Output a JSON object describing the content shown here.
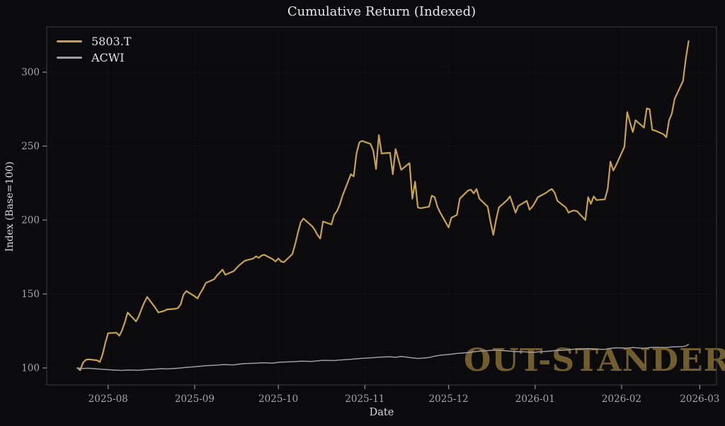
{
  "figure": {
    "title": "Cumulative Return (Indexed)",
    "watermark": "OUT-STANDER"
  },
  "chart_data": {
    "type": "line",
    "title": "Cumulative Return (Indexed)",
    "xlabel": "Date",
    "ylabel": "Index (Base=100)",
    "grid": "dotted",
    "background_color": "#0b0b0d",
    "grid_color": "#2e2d29",
    "spine_color": "#3d3d3d",
    "tick_label_color": "#a6a6a6",
    "x_domain": [
      "2025-07-10",
      "2026-03-07"
    ],
    "y_domain": [
      88.5,
      330.6
    ],
    "y_ticks": [
      100,
      150,
      200,
      250,
      300
    ],
    "x_ticks": [
      {
        "label": "2025-08",
        "date": "2025-08-01"
      },
      {
        "label": "2025-09",
        "date": "2025-09-01"
      },
      {
        "label": "2025-10",
        "date": "2025-10-01"
      },
      {
        "label": "2025-11",
        "date": "2025-11-01"
      },
      {
        "label": "2025-12",
        "date": "2025-12-01"
      },
      {
        "label": "2026-01",
        "date": "2026-01-01"
      },
      {
        "label": "2026-02",
        "date": "2026-02-01"
      },
      {
        "label": "2026-03",
        "date": "2026-03-01"
      }
    ],
    "legend": {
      "position": "upper-left"
    },
    "series": [
      {
        "name": "5803.T",
        "color": "#C9A24C",
        "line_width": 2.2,
        "points": [
          [
            "2025-07-21",
            100
          ],
          [
            "2025-07-22",
            98.5
          ],
          [
            "2025-07-23",
            103.5
          ],
          [
            "2025-07-24",
            105.5
          ],
          [
            "2025-07-25",
            105.8
          ],
          [
            "2025-07-28",
            105.2
          ],
          [
            "2025-07-29",
            104
          ],
          [
            "2025-07-30",
            109
          ],
          [
            "2025-07-31",
            117
          ],
          [
            "2025-08-01",
            123.5
          ],
          [
            "2025-08-04",
            123.8
          ],
          [
            "2025-08-05",
            121.8
          ],
          [
            "2025-08-06",
            125.5
          ],
          [
            "2025-08-07",
            131
          ],
          [
            "2025-08-08",
            137.5
          ],
          [
            "2025-08-11",
            131.5
          ],
          [
            "2025-08-12",
            135
          ],
          [
            "2025-08-13",
            140
          ],
          [
            "2025-08-14",
            144.5
          ],
          [
            "2025-08-15",
            148
          ],
          [
            "2025-08-18",
            140.5
          ],
          [
            "2025-08-19",
            137.5
          ],
          [
            "2025-08-20",
            138
          ],
          [
            "2025-08-21",
            138.5
          ],
          [
            "2025-08-22",
            139.5
          ],
          [
            "2025-08-25",
            140
          ],
          [
            "2025-08-26",
            140.5
          ],
          [
            "2025-08-27",
            143
          ],
          [
            "2025-08-28",
            149.5
          ],
          [
            "2025-08-29",
            152
          ],
          [
            "2025-09-01",
            148.5
          ],
          [
            "2025-09-02",
            147
          ],
          [
            "2025-09-03",
            150.5
          ],
          [
            "2025-09-04",
            153.5
          ],
          [
            "2025-09-05",
            157.5
          ],
          [
            "2025-09-08",
            160
          ],
          [
            "2025-09-09",
            162.5
          ],
          [
            "2025-09-10",
            164.5
          ],
          [
            "2025-09-11",
            166.5
          ],
          [
            "2025-09-12",
            163
          ],
          [
            "2025-09-15",
            165.5
          ],
          [
            "2025-09-16",
            167.5
          ],
          [
            "2025-09-17",
            169.5
          ],
          [
            "2025-09-18",
            171
          ],
          [
            "2025-09-19",
            172.5
          ],
          [
            "2025-09-22",
            174
          ],
          [
            "2025-09-23",
            175.5
          ],
          [
            "2025-09-24",
            174.5
          ],
          [
            "2025-09-25",
            176
          ],
          [
            "2025-09-26",
            176.5
          ],
          [
            "2025-09-29",
            173.5
          ],
          [
            "2025-09-30",
            172
          ],
          [
            "2025-10-01",
            174
          ],
          [
            "2025-10-02",
            172
          ],
          [
            "2025-10-03",
            171.5
          ],
          [
            "2025-10-06",
            177
          ],
          [
            "2025-10-07",
            183.5
          ],
          [
            "2025-10-08",
            191.5
          ],
          [
            "2025-10-09",
            198.5
          ],
          [
            "2025-10-10",
            201
          ],
          [
            "2025-10-13",
            196
          ],
          [
            "2025-10-14",
            193.5
          ],
          [
            "2025-10-15",
            190
          ],
          [
            "2025-10-16",
            187.5
          ],
          [
            "2025-10-17",
            199
          ],
          [
            "2025-10-20",
            197
          ],
          [
            "2025-10-21",
            203.5
          ],
          [
            "2025-10-22",
            206
          ],
          [
            "2025-10-23",
            210.5
          ],
          [
            "2025-10-24",
            216.5
          ],
          [
            "2025-10-27",
            231
          ],
          [
            "2025-10-28",
            229.5
          ],
          [
            "2025-10-29",
            245
          ],
          [
            "2025-10-30",
            252.5
          ],
          [
            "2025-10-31",
            253.5
          ],
          [
            "2025-11-03",
            251.5
          ],
          [
            "2025-11-04",
            247
          ],
          [
            "2025-11-05",
            234.5
          ],
          [
            "2025-11-06",
            257.5
          ],
          [
            "2025-11-07",
            245
          ],
          [
            "2025-11-10",
            245.5
          ],
          [
            "2025-11-11",
            231
          ],
          [
            "2025-11-12",
            248
          ],
          [
            "2025-11-13",
            241
          ],
          [
            "2025-11-14",
            234
          ],
          [
            "2025-11-17",
            238.5
          ],
          [
            "2025-11-18",
            214.5
          ],
          [
            "2025-11-19",
            226
          ],
          [
            "2025-11-20",
            208.5
          ],
          [
            "2025-11-21",
            208
          ],
          [
            "2025-11-24",
            209
          ],
          [
            "2025-11-25",
            216.5
          ],
          [
            "2025-11-26",
            215.5
          ],
          [
            "2025-11-27",
            209
          ],
          [
            "2025-11-28",
            205
          ],
          [
            "2025-12-01",
            195
          ],
          [
            "2025-12-02",
            201.5
          ],
          [
            "2025-12-03",
            202.5
          ],
          [
            "2025-12-04",
            203.5
          ],
          [
            "2025-12-05",
            214.5
          ],
          [
            "2025-12-08",
            220
          ],
          [
            "2025-12-09",
            220.5
          ],
          [
            "2025-12-10",
            218
          ],
          [
            "2025-12-11",
            221
          ],
          [
            "2025-12-12",
            214.5
          ],
          [
            "2025-12-15",
            209
          ],
          [
            "2025-12-16",
            199
          ],
          [
            "2025-12-17",
            190
          ],
          [
            "2025-12-18",
            200
          ],
          [
            "2025-12-19",
            208.5
          ],
          [
            "2025-12-22",
            213.5
          ],
          [
            "2025-12-23",
            216
          ],
          [
            "2025-12-24",
            210.5
          ],
          [
            "2025-12-25",
            205
          ],
          [
            "2025-12-26",
            209.5
          ],
          [
            "2025-12-29",
            213
          ],
          [
            "2025-12-30",
            207
          ],
          [
            "2025-12-31",
            209
          ],
          [
            "2026-01-01",
            212
          ],
          [
            "2026-01-02",
            215.5
          ],
          [
            "2026-01-05",
            218.5
          ],
          [
            "2026-01-06",
            220
          ],
          [
            "2026-01-07",
            221
          ],
          [
            "2026-01-08",
            218.5
          ],
          [
            "2026-01-09",
            213
          ],
          [
            "2026-01-12",
            208.5
          ],
          [
            "2026-01-13",
            205
          ],
          [
            "2026-01-14",
            206
          ],
          [
            "2026-01-15",
            206.5
          ],
          [
            "2026-01-16",
            206
          ],
          [
            "2026-01-19",
            200
          ],
          [
            "2026-01-20",
            215.5
          ],
          [
            "2026-01-21",
            211
          ],
          [
            "2026-01-22",
            216
          ],
          [
            "2026-01-23",
            213.5
          ],
          [
            "2026-01-26",
            214
          ],
          [
            "2026-01-27",
            221
          ],
          [
            "2026-01-28",
            239.5
          ],
          [
            "2026-01-29",
            233.5
          ],
          [
            "2026-01-30",
            237
          ],
          [
            "2026-02-02",
            249.5
          ],
          [
            "2026-02-03",
            273
          ],
          [
            "2026-02-04",
            266
          ],
          [
            "2026-02-05",
            259.5
          ],
          [
            "2026-02-06",
            267.5
          ],
          [
            "2026-02-09",
            262.5
          ],
          [
            "2026-02-10",
            275.5
          ],
          [
            "2026-02-11",
            275
          ],
          [
            "2026-02-12",
            261
          ],
          [
            "2026-02-13",
            260.5
          ],
          [
            "2026-02-16",
            258
          ],
          [
            "2026-02-17",
            256
          ],
          [
            "2026-02-18",
            267.5
          ],
          [
            "2026-02-19",
            272
          ],
          [
            "2026-02-20",
            282
          ],
          [
            "2026-02-23",
            294
          ],
          [
            "2026-02-24",
            309
          ],
          [
            "2026-02-25",
            321
          ]
        ]
      },
      {
        "name": "ACWI",
        "color": "#9E9E9E",
        "line_width": 1.5,
        "points": [
          [
            "2025-07-21",
            100
          ],
          [
            "2025-07-23",
            99.6
          ],
          [
            "2025-07-25",
            99.8
          ],
          [
            "2025-07-29",
            99.2
          ],
          [
            "2025-07-31",
            99
          ],
          [
            "2025-08-04",
            98.5
          ],
          [
            "2025-08-06",
            98.3
          ],
          [
            "2025-08-08",
            98.6
          ],
          [
            "2025-08-12",
            98.4
          ],
          [
            "2025-08-14",
            98.8
          ],
          [
            "2025-08-18",
            99.2
          ],
          [
            "2025-08-20",
            99.5
          ],
          [
            "2025-08-22",
            99.3
          ],
          [
            "2025-08-26",
            99.8
          ],
          [
            "2025-08-28",
            100.2
          ],
          [
            "2025-09-01",
            100.8
          ],
          [
            "2025-09-03",
            101.2
          ],
          [
            "2025-09-05",
            101.5
          ],
          [
            "2025-09-09",
            101.9
          ],
          [
            "2025-09-11",
            102.3
          ],
          [
            "2025-09-15",
            102.1
          ],
          [
            "2025-09-17",
            102.6
          ],
          [
            "2025-09-19",
            103
          ],
          [
            "2025-09-23",
            103.2
          ],
          [
            "2025-09-25",
            103.5
          ],
          [
            "2025-09-29",
            103.3
          ],
          [
            "2025-10-01",
            103.8
          ],
          [
            "2025-10-03",
            104
          ],
          [
            "2025-10-07",
            104.3
          ],
          [
            "2025-10-09",
            104.6
          ],
          [
            "2025-10-13",
            104.4
          ],
          [
            "2025-10-15",
            104.8
          ],
          [
            "2025-10-17",
            105.1
          ],
          [
            "2025-10-21",
            105
          ],
          [
            "2025-10-23",
            105.4
          ],
          [
            "2025-10-27",
            105.8
          ],
          [
            "2025-10-29",
            106.2
          ],
          [
            "2025-10-31",
            106.5
          ],
          [
            "2025-11-04",
            106.9
          ],
          [
            "2025-11-06",
            107.3
          ],
          [
            "2025-11-10",
            107.6
          ],
          [
            "2025-11-12",
            107.2
          ],
          [
            "2025-11-14",
            107.8
          ],
          [
            "2025-11-18",
            106.8
          ],
          [
            "2025-11-20",
            106.4
          ],
          [
            "2025-11-24",
            107
          ],
          [
            "2025-11-26",
            108
          ],
          [
            "2025-11-28",
            108.6
          ],
          [
            "2025-12-02",
            109.3
          ],
          [
            "2025-12-04",
            109.8
          ],
          [
            "2025-12-08",
            110.4
          ],
          [
            "2025-12-10",
            110.9
          ],
          [
            "2025-12-12",
            111.4
          ],
          [
            "2025-12-16",
            111.8
          ],
          [
            "2025-12-18",
            112.1
          ],
          [
            "2025-12-22",
            111.5
          ],
          [
            "2025-12-24",
            111.2
          ],
          [
            "2025-12-29",
            110.8
          ],
          [
            "2025-12-31",
            110.5
          ],
          [
            "2026-01-02",
            110.8
          ],
          [
            "2026-01-06",
            111.3
          ],
          [
            "2026-01-08",
            111.7
          ],
          [
            "2026-01-12",
            112.1
          ],
          [
            "2026-01-14",
            112.5
          ],
          [
            "2026-01-16",
            112.8
          ],
          [
            "2026-01-20",
            113.1
          ],
          [
            "2026-01-22",
            112.7
          ],
          [
            "2026-01-26",
            112.5
          ],
          [
            "2026-01-28",
            113.2
          ],
          [
            "2026-01-30",
            113.6
          ],
          [
            "2026-02-03",
            113.4
          ],
          [
            "2026-02-05",
            113.8
          ],
          [
            "2026-02-09",
            113.3
          ],
          [
            "2026-02-11",
            113.7
          ],
          [
            "2026-02-13",
            114
          ],
          [
            "2026-02-17",
            113.8
          ],
          [
            "2026-02-19",
            114.2
          ],
          [
            "2026-02-23",
            114.5
          ],
          [
            "2026-02-24",
            114.9
          ],
          [
            "2026-02-25",
            115.9
          ]
        ]
      }
    ]
  }
}
